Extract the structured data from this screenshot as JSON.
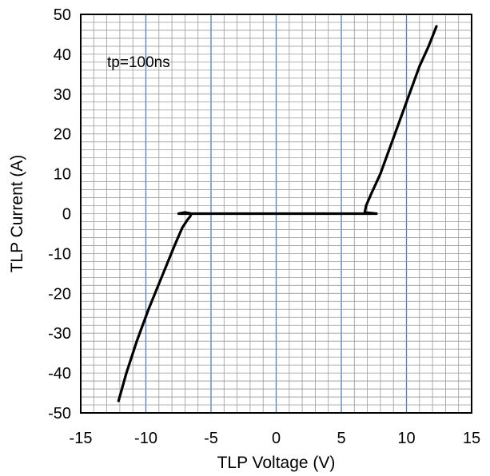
{
  "chart_data": {
    "type": "line",
    "title": "",
    "xlabel": "TLP Voltage (V)",
    "ylabel": "TLP Current (A)",
    "xlim": [
      -15,
      15
    ],
    "ylim": [
      -50,
      50
    ],
    "x_major_ticks": [
      -15,
      -10,
      -5,
      0,
      5,
      10,
      15
    ],
    "y_major_ticks": [
      -50,
      -40,
      -30,
      -20,
      -10,
      0,
      10,
      20,
      30,
      40,
      50
    ],
    "x_tick_labels": [
      "-15",
      "-10",
      "-5",
      "0",
      "5",
      "10",
      "15"
    ],
    "y_tick_labels": [
      "-50",
      "-40",
      "-30",
      "-20",
      "-10",
      "0",
      "10",
      "20",
      "30",
      "40",
      "50"
    ],
    "x_minor_step": 1,
    "y_minor_step": 2,
    "grid": true,
    "annotation": "tp=100ns",
    "colors": {
      "major_x_grid": "#4a7fb8",
      "minor_grid": "#9a9a9a",
      "series": "#000000",
      "axes": "#000000"
    },
    "series": [
      {
        "values": [
          [
            -12.1,
            -47.0
          ],
          [
            -11.5,
            -40.0
          ],
          [
            -10.7,
            -32.0
          ],
          [
            -9.8,
            -24.0
          ],
          [
            -8.8,
            -16.0
          ],
          [
            -7.8,
            -8.0
          ],
          [
            -7.2,
            -3.5
          ],
          [
            -6.8,
            -1.5
          ],
          [
            -6.6,
            -0.7
          ],
          [
            -6.5,
            0.0
          ],
          [
            -7.0,
            0.3
          ],
          [
            -7.5,
            0.0
          ],
          [
            -5.0,
            0.0
          ],
          [
            0.0,
            0.0
          ],
          [
            3.0,
            0.0
          ],
          [
            6.8,
            0.0
          ],
          [
            7.7,
            0.0
          ],
          [
            6.8,
            0.3
          ],
          [
            6.9,
            2.0
          ],
          [
            7.3,
            5.0
          ],
          [
            8.0,
            10.0
          ],
          [
            9.0,
            19.0
          ],
          [
            10.0,
            28.0
          ],
          [
            11.0,
            37.0
          ],
          [
            11.7,
            42.0
          ],
          [
            12.3,
            47.0
          ]
        ]
      }
    ]
  }
}
